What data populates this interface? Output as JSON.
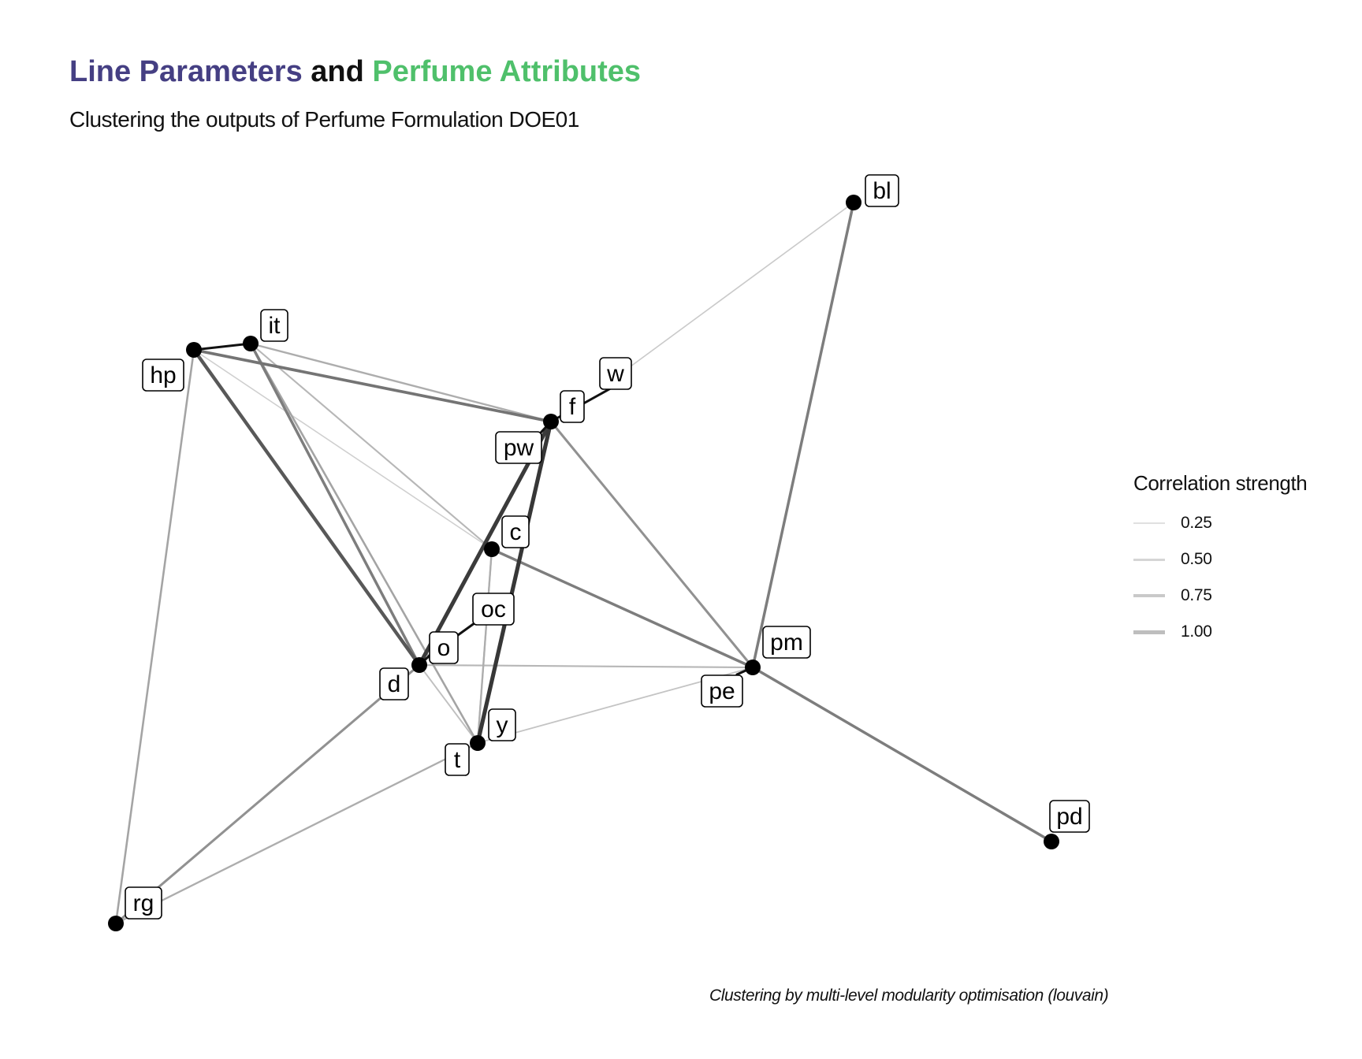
{
  "title": {
    "part1": "Line Parameters",
    "part2": " and ",
    "part3": "Perfume Attributes",
    "color1": "#453f83",
    "color2": "#111111",
    "color3": "#4fc06b"
  },
  "subtitle": "Clustering the outputs of Perfume Formulation DOE01",
  "caption": "Clustering by multi-level modularity optimisation (louvain)",
  "legend": {
    "title": "Correlation strength",
    "items": [
      {
        "label": "0.25",
        "strength": 0.25
      },
      {
        "label": "0.50",
        "strength": 0.5
      },
      {
        "label": "0.75",
        "strength": 0.75
      },
      {
        "label": "1.00",
        "strength": 1.0
      }
    ]
  },
  "nodes": [
    {
      "id": "bl",
      "label": "bl"
    },
    {
      "id": "it",
      "label": "it"
    },
    {
      "id": "hp",
      "label": "hp"
    },
    {
      "id": "w",
      "label": "w"
    },
    {
      "id": "f",
      "label": "f"
    },
    {
      "id": "pw",
      "label": "pw"
    },
    {
      "id": "c",
      "label": "c"
    },
    {
      "id": "oc",
      "label": "oc"
    },
    {
      "id": "o",
      "label": "o"
    },
    {
      "id": "d",
      "label": "d"
    },
    {
      "id": "pm",
      "label": "pm"
    },
    {
      "id": "pe",
      "label": "pe"
    },
    {
      "id": "y",
      "label": "y"
    },
    {
      "id": "t",
      "label": "t"
    },
    {
      "id": "pd",
      "label": "pd"
    },
    {
      "id": "rg",
      "label": "rg"
    }
  ],
  "edges": [
    {
      "source": "hp",
      "target": "it",
      "strength": 1.0
    },
    {
      "source": "f",
      "target": "w",
      "strength": 1.0
    },
    {
      "source": "f",
      "target": "pw",
      "strength": 1.0
    },
    {
      "source": "o",
      "target": "oc",
      "strength": 1.0
    },
    {
      "source": "d",
      "target": "o",
      "strength": 1.0
    },
    {
      "source": "pm",
      "target": "pe",
      "strength": 1.0
    },
    {
      "source": "y",
      "target": "t",
      "strength": 1.0
    },
    {
      "source": "rg",
      "target": "rg",
      "strength": 0.0
    },
    {
      "source": "f",
      "target": "y",
      "strength": 0.92
    },
    {
      "source": "f",
      "target": "d",
      "strength": 0.9
    },
    {
      "source": "hp",
      "target": "d",
      "strength": 0.75
    },
    {
      "source": "hp",
      "target": "f",
      "strength": 0.6
    },
    {
      "source": "bl",
      "target": "pm",
      "strength": 0.55
    },
    {
      "source": "c",
      "target": "pm",
      "strength": 0.55
    },
    {
      "source": "pm",
      "target": "pd",
      "strength": 0.55
    },
    {
      "source": "it",
      "target": "d",
      "strength": 0.55
    },
    {
      "source": "f",
      "target": "pm",
      "strength": 0.45
    },
    {
      "source": "rg",
      "target": "d",
      "strength": 0.45
    },
    {
      "source": "hp",
      "target": "rg",
      "strength": 0.35
    },
    {
      "source": "it",
      "target": "t",
      "strength": 0.35
    },
    {
      "source": "rg",
      "target": "t",
      "strength": 0.3
    },
    {
      "source": "it",
      "target": "f",
      "strength": 0.3
    },
    {
      "source": "c",
      "target": "y",
      "strength": 0.3
    },
    {
      "source": "c",
      "target": "t",
      "strength": 0.25
    },
    {
      "source": "d",
      "target": "pm",
      "strength": 0.25
    },
    {
      "source": "it",
      "target": "c",
      "strength": 0.25
    },
    {
      "source": "d",
      "target": "t",
      "strength": 0.2
    },
    {
      "source": "y",
      "target": "pe",
      "strength": 0.18
    },
    {
      "source": "w",
      "target": "bl",
      "strength": 0.15
    },
    {
      "source": "hp",
      "target": "c",
      "strength": 0.12
    }
  ]
}
